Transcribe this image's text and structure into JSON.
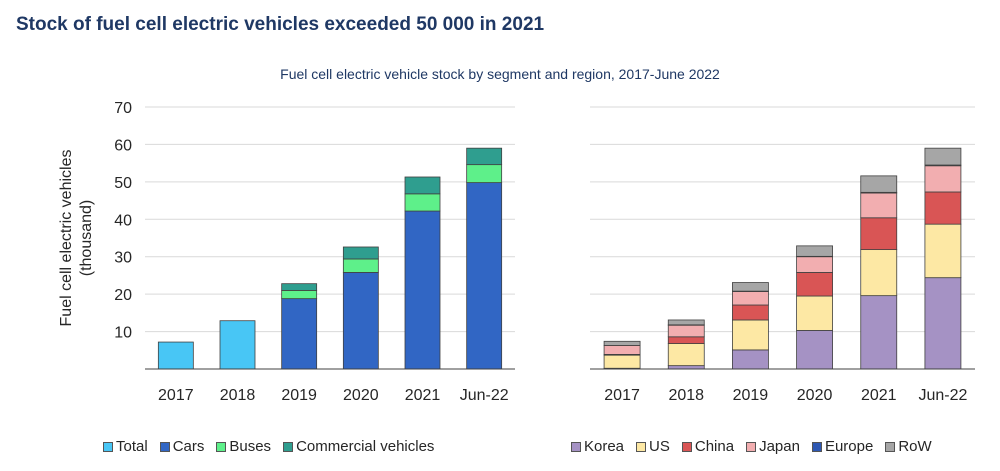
{
  "title": "Stock of fuel cell electric vehicles exceeded 50 000 in 2021",
  "subtitle": "Fuel cell electric vehicle stock by segment and region, 2017-June 2022",
  "chart_data": [
    {
      "type": "bar",
      "stacked": true,
      "categories": [
        "2017",
        "2018",
        "2019",
        "2020",
        "2021",
        "Jun-22"
      ],
      "ylabel_line1": "Fuel cell electric vehicles",
      "ylabel_line2": "(thousand)",
      "ylim": [
        0,
        70
      ],
      "yticks": [
        "10",
        "20",
        "30",
        "40",
        "50",
        "60",
        "70"
      ],
      "grid": true,
      "legend_position": "bottom",
      "series": [
        {
          "name": "Total",
          "color": "#48c6f5",
          "values": [
            7.2,
            12.9,
            0,
            0,
            0,
            0
          ]
        },
        {
          "name": "Cars",
          "color": "#3166c4",
          "values": [
            0,
            0,
            18.8,
            25.8,
            42.2,
            49.8
          ]
        },
        {
          "name": "Buses",
          "color": "#5ef08a",
          "values": [
            0,
            0,
            2.2,
            3.6,
            4.6,
            4.8
          ]
        },
        {
          "name": "Commercial vehicles",
          "color": "#2f9e8f",
          "values": [
            0,
            0,
            1.8,
            3.2,
            4.5,
            4.4
          ]
        }
      ]
    },
    {
      "type": "bar",
      "stacked": true,
      "categories": [
        "2017",
        "2018",
        "2019",
        "2020",
        "2021",
        "Jun-22"
      ],
      "ylim": [
        0,
        70
      ],
      "grid": true,
      "legend_position": "bottom",
      "series": [
        {
          "name": "Korea",
          "color": "#a592c4",
          "values": [
            0.2,
            0.9,
            5.1,
            10.3,
            19.6,
            24.4
          ]
        },
        {
          "name": "US",
          "color": "#fde8a4",
          "values": [
            3.5,
            5.9,
            8.0,
            9.2,
            12.3,
            14.3
          ]
        },
        {
          "name": "China",
          "color": "#d95555",
          "values": [
            0.2,
            1.8,
            4.0,
            6.3,
            8.5,
            8.6
          ]
        },
        {
          "name": "Japan",
          "color": "#f2aeb0",
          "values": [
            2.4,
            3.1,
            3.6,
            4.2,
            6.6,
            7.0
          ]
        },
        {
          "name": "Europe",
          "color": "#2e58b3",
          "values": [
            0.0,
            0.1,
            0.1,
            0.1,
            0.2,
            0.2
          ]
        },
        {
          "name": "RoW",
          "color": "#a6a6a6",
          "values": [
            1.1,
            1.3,
            2.3,
            2.8,
            4.4,
            4.5
          ]
        }
      ]
    }
  ]
}
